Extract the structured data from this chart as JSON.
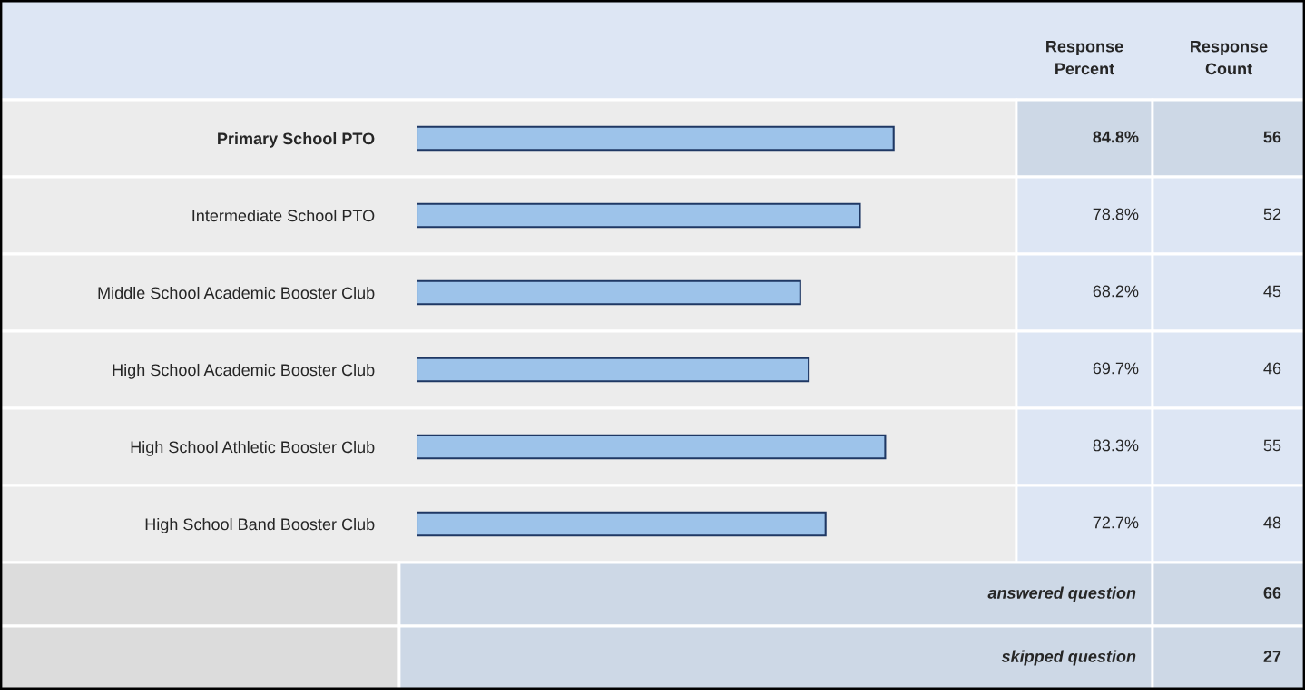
{
  "chart_data": {
    "type": "bar",
    "orientation": "horizontal",
    "categories": [
      "Primary School PTO",
      "Intermediate School PTO",
      "Middle School Academic Booster Club",
      "High School Academic Booster Club",
      "High School Athletic Booster Club",
      "High School Band Booster Club"
    ],
    "values": [
      84.8,
      78.8,
      68.2,
      69.7,
      83.3,
      72.7
    ],
    "value_labels": [
      "84.8%",
      "78.8%",
      "68.2%",
      "69.7%",
      "83.3%",
      "72.7%"
    ],
    "color": "#9dc3ea",
    "tick_labels": "y",
    "grid": false,
    "annotations": [
      "Response\nPercent",
      "Response\nCount",
      "56",
      "52",
      "45",
      "46",
      "55",
      "48",
      "answered question",
      "66",
      "skipped question",
      "27"
    ]
  }
}
